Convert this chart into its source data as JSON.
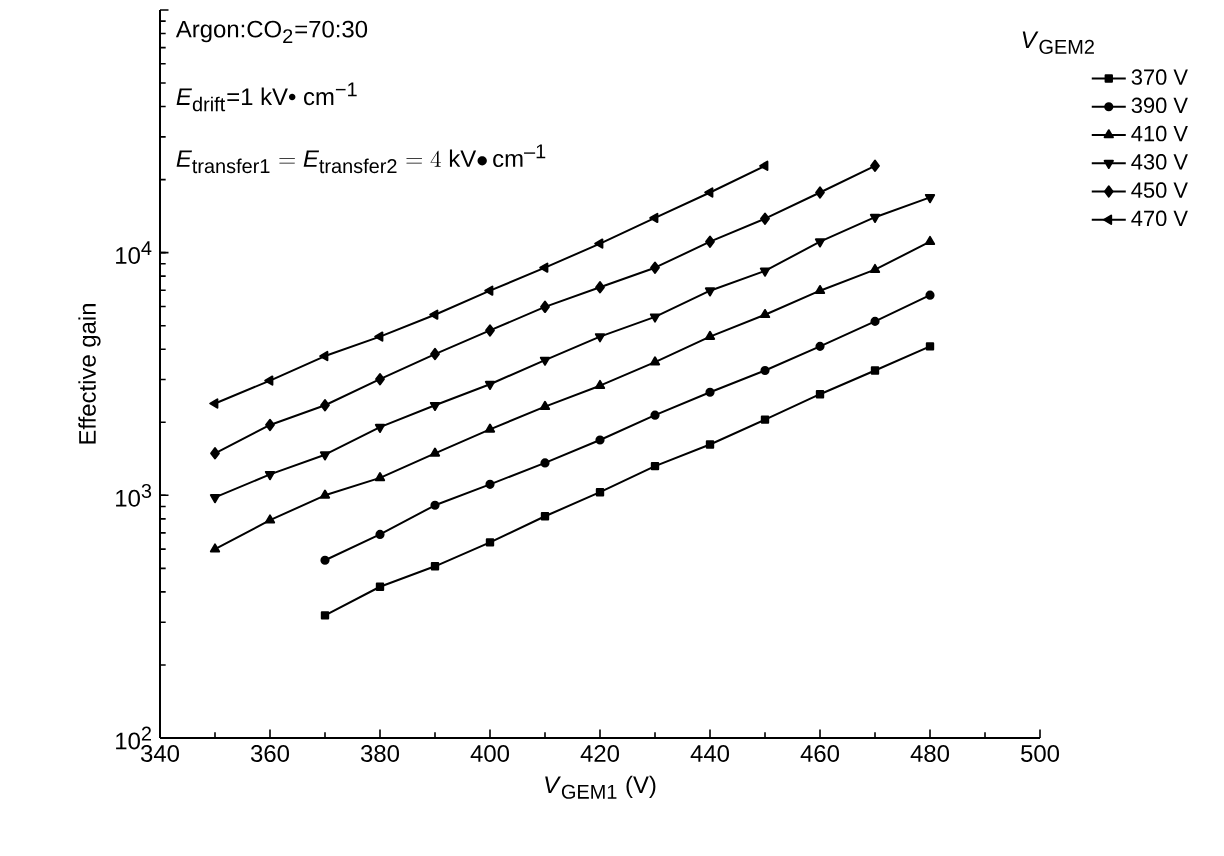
{
  "chart_data": {
    "type": "line",
    "xlabel": "*V*$_{GEM1}$ (V)",
    "ylabel": "Effective gain",
    "legend_title": "*V*$_{GEM2}$",
    "annotations": [
      "Argon:CO$_{2}$=70:30",
      "*E*$_{drift}$=1 kV• cm$^{−1}$",
      "E_{\\mathrm{transfer1}}=E_{\\mathrm{transfer2}}=4\\ \\mathrm{kV{\\bullet}\\,cm^{-1}}"
    ],
    "xlim": [
      340,
      500
    ],
    "xticks": [
      340,
      360,
      380,
      400,
      420,
      440,
      460,
      480,
      500
    ],
    "ylim": [
      100,
      100000
    ],
    "yticks": [
      {
        "value": 100,
        "label": "10$^{2}$"
      },
      {
        "value": 1000,
        "label": "10$^{3}$"
      },
      {
        "value": 10000,
        "label": "10$^{4}$"
      },
      {
        "value": 100000,
        "label": null
      }
    ],
    "log": "y",
    "grid": false,
    "legend": "top right",
    "line_style": "solid",
    "series": [
      {
        "name": "370 V",
        "color": "#000000",
        "marker": "square",
        "x": [
          370,
          380,
          390,
          400,
          410,
          420,
          430,
          440,
          450,
          460,
          470,
          480
        ],
        "values": [
          320,
          420,
          510,
          640,
          820,
          1030,
          1320,
          1620,
          2050,
          2610,
          3270,
          4110
        ]
      },
      {
        "name": "390 V",
        "color": "#000000",
        "marker": "circle",
        "x": [
          370,
          380,
          390,
          400,
          410,
          420,
          430,
          440,
          450,
          460,
          470,
          480
        ],
        "values": [
          540,
          690,
          910,
          1110,
          1360,
          1690,
          2140,
          2660,
          3270,
          4110,
          5210,
          6680
        ]
      },
      {
        "name": "410 V",
        "color": "#000000",
        "marker": "triangle",
        "x": [
          350,
          360,
          370,
          380,
          390,
          400,
          410,
          420,
          430,
          440,
          450,
          460,
          470,
          480
        ],
        "values": [
          600,
          790,
          1000,
          1180,
          1490,
          1870,
          2320,
          2830,
          3540,
          4510,
          5550,
          6970,
          8510,
          11100
        ]
      },
      {
        "name": "430 V",
        "color": "#000000",
        "marker": "triangle down",
        "x": [
          350,
          360,
          370,
          380,
          390,
          400,
          410,
          420,
          430,
          440,
          450,
          460,
          470,
          480
        ],
        "values": [
          980,
          1220,
          1470,
          1910,
          2350,
          2870,
          3610,
          4510,
          5440,
          6970,
          8410,
          11100,
          14000,
          16900
        ]
      },
      {
        "name": "450 V",
        "color": "#000000",
        "marker": "diamond",
        "x": [
          350,
          360,
          370,
          380,
          390,
          400,
          410,
          420,
          430,
          440,
          450,
          460,
          470
        ],
        "values": [
          1490,
          1950,
          2350,
          3010,
          3820,
          4780,
          5980,
          7200,
          8670,
          11100,
          13800,
          17700,
          22800
        ]
      },
      {
        "name": "470 V",
        "color": "#000000",
        "marker": "triangle left",
        "x": [
          350,
          360,
          370,
          380,
          390,
          400,
          410,
          420,
          430,
          440,
          450
        ],
        "values": [
          2390,
          2970,
          3750,
          4510,
          5550,
          6970,
          8670,
          10900,
          13900,
          17700,
          22800
        ]
      }
    ]
  }
}
